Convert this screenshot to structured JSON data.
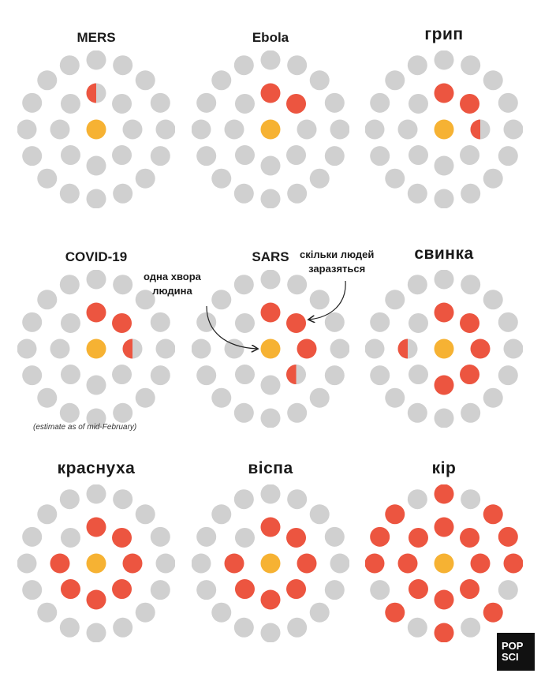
{
  "colors": {
    "healthy": "#d0d0d0",
    "patient": "#f6b233",
    "infected": "#ec5540"
  },
  "panels": [
    {
      "id": "mers",
      "title": "MERS",
      "size": "sm",
      "r0": 0.5,
      "red": [
        {
          "i": 1,
          "frac": 0.5
        }
      ]
    },
    {
      "id": "ebola",
      "title": "Ebola",
      "size": "sm",
      "r0": 2,
      "red": [
        {
          "i": 1,
          "frac": 1
        },
        {
          "i": 2,
          "frac": 1
        }
      ]
    },
    {
      "id": "flu",
      "title": "грип",
      "size": "lg",
      "r0": 2.5,
      "red": [
        {
          "i": 1,
          "frac": 1
        },
        {
          "i": 2,
          "frac": 1
        },
        {
          "i": 3,
          "frac": 0.5
        }
      ]
    },
    {
      "id": "covid",
      "title": "COVID-19",
      "size": "sm",
      "r0": 2.5,
      "red": [
        {
          "i": 1,
          "frac": 1
        },
        {
          "i": 2,
          "frac": 1
        },
        {
          "i": 3,
          "frac": 0.5
        }
      ]
    },
    {
      "id": "sars",
      "title": "SARS",
      "size": "sm",
      "r0": 3.5,
      "red": [
        {
          "i": 1,
          "frac": 1
        },
        {
          "i": 2,
          "frac": 1
        },
        {
          "i": 3,
          "frac": 1
        },
        {
          "i": 4,
          "frac": 0.5
        }
      ]
    },
    {
      "id": "swine",
      "title": "свинка",
      "size": "lg",
      "r0": 5.5,
      "red": [
        {
          "i": 1,
          "frac": 1
        },
        {
          "i": 2,
          "frac": 1
        },
        {
          "i": 3,
          "frac": 1
        },
        {
          "i": 4,
          "frac": 1
        },
        {
          "i": 5,
          "frac": 1
        },
        {
          "i": 7,
          "frac": 0.5
        }
      ]
    },
    {
      "id": "rubella",
      "title": "краснуха",
      "size": "lg",
      "r0": 7,
      "red": [
        {
          "i": 1,
          "frac": 1
        },
        {
          "i": 2,
          "frac": 1
        },
        {
          "i": 3,
          "frac": 1
        },
        {
          "i": 4,
          "frac": 1
        },
        {
          "i": 5,
          "frac": 1
        },
        {
          "i": 6,
          "frac": 1
        },
        {
          "i": 7,
          "frac": 1
        }
      ]
    },
    {
      "id": "smallpox",
      "title": "віспа",
      "size": "lg",
      "r0": 7,
      "red": [
        {
          "i": 1,
          "frac": 1
        },
        {
          "i": 2,
          "frac": 1
        },
        {
          "i": 3,
          "frac": 1
        },
        {
          "i": 4,
          "frac": 1
        },
        {
          "i": 5,
          "frac": 1
        },
        {
          "i": 6,
          "frac": 1
        },
        {
          "i": 7,
          "frac": 1
        }
      ]
    },
    {
      "id": "measles",
      "title": "кір",
      "size": "lg",
      "r0": 15,
      "red": "all"
    }
  ],
  "covid_note": "(estimate as of mid-February)",
  "callouts": {
    "patient": [
      "одна хвора",
      "людина"
    ],
    "infected": [
      "скільки людей",
      "заразяться"
    ]
  },
  "logo": [
    "POP",
    "SCI"
  ]
}
